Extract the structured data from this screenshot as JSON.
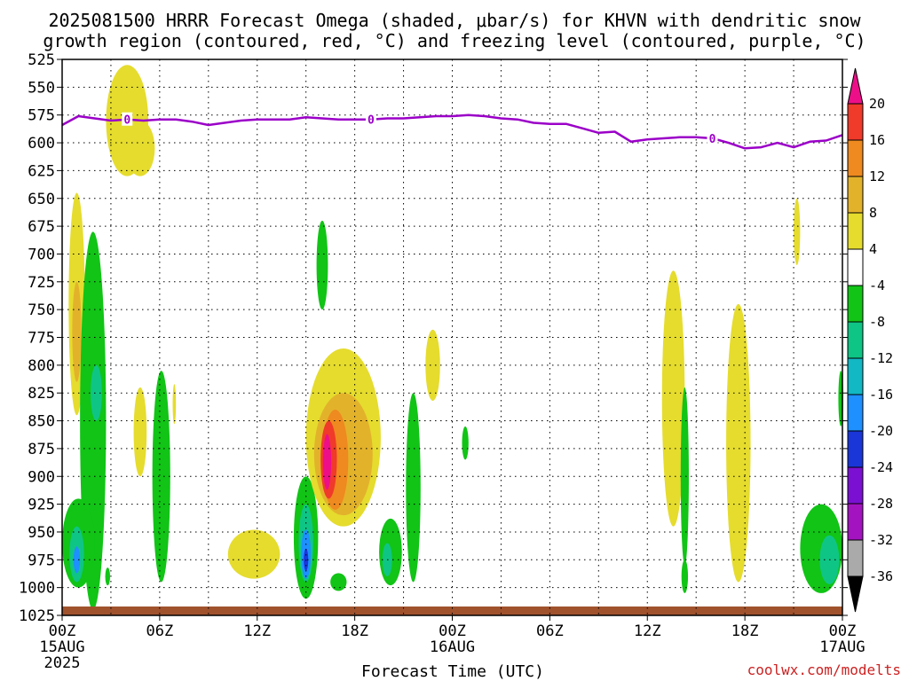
{
  "title": {
    "line1": "2025081500 HRRR Forecast Omega (shaded, μbar/s) for KHVN with dendritic snow",
    "line2": "growth region (contoured, red, °C) and freezing level (contoured, purple, °C)"
  },
  "credit": "coolwx.com/modelts",
  "chart_data": {
    "type": "heatmap",
    "title": "2025081500 HRRR Forecast Omega (shaded, μbar/s) for KHVN with dendritic snow growth region (contoured, red, °C) and freezing level (contoured, purple, °C)",
    "xlabel": "Forecast Time (UTC)",
    "ylabel": "",
    "x_unit": "hours since 2025-08-15 00Z",
    "xlim": [
      0,
      48
    ],
    "ylim": [
      1025,
      525
    ],
    "y_ticks": [
      525,
      550,
      575,
      600,
      625,
      650,
      675,
      700,
      725,
      750,
      775,
      800,
      825,
      850,
      875,
      900,
      925,
      950,
      975,
      1000,
      1025
    ],
    "x_ticks": [
      {
        "hour": 0,
        "label": "00Z",
        "sub1": "15AUG",
        "sub2": "2025"
      },
      {
        "hour": 6,
        "label": "06Z",
        "sub1": "",
        "sub2": ""
      },
      {
        "hour": 12,
        "label": "12Z",
        "sub1": "",
        "sub2": ""
      },
      {
        "hour": 18,
        "label": "18Z",
        "sub1": "",
        "sub2": ""
      },
      {
        "hour": 24,
        "label": "00Z",
        "sub1": "16AUG",
        "sub2": ""
      },
      {
        "hour": 30,
        "label": "06Z",
        "sub1": "",
        "sub2": ""
      },
      {
        "hour": 36,
        "label": "12Z",
        "sub1": "",
        "sub2": ""
      },
      {
        "hour": 42,
        "label": "18Z",
        "sub1": "",
        "sub2": ""
      },
      {
        "hour": 48,
        "label": "00Z",
        "sub1": "17AUG",
        "sub2": ""
      }
    ],
    "grid": true,
    "colorbar": {
      "label_values": [
        20,
        16,
        12,
        8,
        4,
        -4,
        -8,
        -12,
        -16,
        -20,
        -24,
        -28,
        -32,
        -36
      ],
      "bins": [
        {
          "color": "#ec0f88"
        },
        {
          "color": "#f03a2a"
        },
        {
          "color": "#ee8a1f"
        },
        {
          "color": "#e3b22b"
        },
        {
          "color": "#e5dc2e"
        },
        {
          "color": "#ffffff"
        },
        {
          "color": "#11c416"
        },
        {
          "color": "#0fc585"
        },
        {
          "color": "#12b8c4"
        },
        {
          "color": "#1e90ff"
        },
        {
          "color": "#1a36d8"
        },
        {
          "color": "#7b10d3"
        },
        {
          "color": "#a413c0"
        },
        {
          "color": "#aaaaaa"
        },
        {
          "color": "#000000"
        }
      ]
    },
    "freezing_level": {
      "label": "0",
      "color": "#9b00c8",
      "points": [
        [
          0,
          584
        ],
        [
          1,
          576
        ],
        [
          2,
          578
        ],
        [
          3,
          580
        ],
        [
          4,
          579
        ],
        [
          5,
          580
        ],
        [
          6,
          579
        ],
        [
          7,
          579
        ],
        [
          8,
          581
        ],
        [
          9,
          584
        ],
        [
          10,
          582
        ],
        [
          11,
          580
        ],
        [
          12,
          579
        ],
        [
          13,
          579
        ],
        [
          14,
          579
        ],
        [
          15,
          577
        ],
        [
          16,
          578
        ],
        [
          17,
          579
        ],
        [
          18,
          579
        ],
        [
          19,
          579
        ],
        [
          20,
          578
        ],
        [
          21,
          578
        ],
        [
          22,
          577
        ],
        [
          23,
          576
        ],
        [
          24,
          576
        ],
        [
          25,
          575
        ],
        [
          26,
          576
        ],
        [
          27,
          578
        ],
        [
          28,
          579
        ],
        [
          29,
          582
        ],
        [
          30,
          583
        ],
        [
          31,
          583
        ],
        [
          32,
          587
        ],
        [
          33,
          591
        ],
        [
          34,
          590
        ],
        [
          35,
          599
        ],
        [
          36,
          597
        ],
        [
          37,
          596
        ],
        [
          38,
          595
        ],
        [
          39,
          595
        ],
        [
          40,
          596
        ],
        [
          41,
          600
        ],
        [
          42,
          605
        ],
        [
          43,
          604
        ],
        [
          44,
          600
        ],
        [
          45,
          604
        ],
        [
          46,
          599
        ],
        [
          47,
          598
        ],
        [
          48,
          593
        ]
      ],
      "labels_at_hours": [
        4,
        19,
        40
      ]
    },
    "surface": {
      "color": "#a0522d",
      "top_pressure": 1017
    },
    "omega_regions": [
      {
        "name": "ascent-15aug-00z-yellow",
        "color": "#e5dc2e",
        "hour": 0.9,
        "p": 745,
        "dh": 0.5,
        "dp": 100
      },
      {
        "name": "ascent-15aug-00z-orange",
        "color": "#e3b22b",
        "hour": 0.9,
        "p": 770,
        "dh": 0.28,
        "dp": 45
      },
      {
        "name": "descent-15aug-01z-green",
        "color": "#11c416",
        "hour": 1.9,
        "p": 850,
        "dh": 0.8,
        "dp": 170
      },
      {
        "name": "descent-15aug-01z-teal",
        "color": "#0fc585",
        "hour": 2.1,
        "p": 825,
        "dh": 0.35,
        "dp": 25
      },
      {
        "name": "descent-15aug-00z-lowgreen",
        "color": "#11c416",
        "hour": 1.0,
        "p": 960,
        "dh": 1.0,
        "dp": 40
      },
      {
        "name": "descent-15aug-00z-lowteal",
        "color": "#0fc585",
        "hour": 0.9,
        "p": 970,
        "dh": 0.45,
        "dp": 25
      },
      {
        "name": "descent-15aug-00z-lowblue",
        "color": "#1e90ff",
        "hour": 0.9,
        "p": 975,
        "dh": 0.2,
        "dp": 12
      },
      {
        "name": "descent-15aug-03z-small",
        "color": "#11c416",
        "hour": 2.8,
        "p": 990,
        "dh": 0.15,
        "dp": 8
      },
      {
        "name": "ascent-15aug-04z-upper",
        "color": "#e5dc2e",
        "hour": 4.0,
        "p": 580,
        "dh": 1.3,
        "dp": 50
      },
      {
        "name": "ascent-15aug-04z-upper-diag",
        "color": "#e5dc2e",
        "hour": 4.8,
        "p": 605,
        "dh": 0.9,
        "dp": 25
      },
      {
        "name": "ascent-15aug-05z-mid",
        "color": "#e5dc2e",
        "hour": 4.8,
        "p": 860,
        "dh": 0.4,
        "dp": 40
      },
      {
        "name": "descent-15aug-06z-green",
        "color": "#11c416",
        "hour": 6.1,
        "p": 900,
        "dh": 0.55,
        "dp": 95
      },
      {
        "name": "ascent-15aug-07z-thin",
        "color": "#e5dc2e",
        "hour": 6.9,
        "p": 835,
        "dh": 0.1,
        "dp": 18
      },
      {
        "name": "ascent-15aug-12z-yellow",
        "color": "#e5dc2e",
        "hour": 11.8,
        "p": 970,
        "dh": 1.6,
        "dp": 22
      },
      {
        "name": "descent-15aug-15z-green",
        "color": "#11c416",
        "hour": 15.0,
        "p": 955,
        "dh": 0.75,
        "dp": 55
      },
      {
        "name": "descent-15aug-15z-teal",
        "color": "#0fc585",
        "hour": 15.0,
        "p": 960,
        "dh": 0.45,
        "dp": 35
      },
      {
        "name": "descent-15aug-15z-blue",
        "color": "#1e90ff",
        "hour": 15.0,
        "p": 970,
        "dh": 0.3,
        "dp": 22
      },
      {
        "name": "descent-15aug-15z-darkblue",
        "color": "#1a36d8",
        "hour": 15.0,
        "p": 975,
        "dh": 0.14,
        "dp": 10
      },
      {
        "name": "descent-15aug-16z-upper",
        "color": "#11c416",
        "hour": 16.0,
        "p": 710,
        "dh": 0.35,
        "dp": 40
      },
      {
        "name": "ascent-15aug-16z-yellow",
        "color": "#e5dc2e",
        "hour": 17.3,
        "p": 865,
        "dh": 2.3,
        "dp": 80
      },
      {
        "name": "ascent-15aug-16z-orange",
        "color": "#e3b22b",
        "hour": 17.3,
        "p": 880,
        "dh": 1.8,
        "dp": 55
      },
      {
        "name": "ascent-15aug-16z-darkorange",
        "color": "#ee8a1f",
        "hour": 16.8,
        "p": 885,
        "dh": 0.8,
        "dp": 45
      },
      {
        "name": "ascent-15aug-16z-red",
        "color": "#f03a2a",
        "hour": 16.4,
        "p": 885,
        "dh": 0.5,
        "dp": 35
      },
      {
        "name": "ascent-15aug-16z-magenta",
        "color": "#ec0f88",
        "hour": 16.3,
        "p": 887,
        "dh": 0.25,
        "dp": 25
      },
      {
        "name": "descent-15aug-17z-low",
        "color": "#11c416",
        "hour": 17.0,
        "p": 995,
        "dh": 0.5,
        "dp": 8
      },
      {
        "name": "descent-15aug-20z-green",
        "color": "#11c416",
        "hour": 20.2,
        "p": 968,
        "dh": 0.7,
        "dp": 30
      },
      {
        "name": "descent-15aug-20z-teal",
        "color": "#0fc585",
        "hour": 20.0,
        "p": 975,
        "dh": 0.3,
        "dp": 15
      },
      {
        "name": "descent-15aug-21z-green",
        "color": "#11c416",
        "hour": 21.6,
        "p": 910,
        "dh": 0.45,
        "dp": 85
      },
      {
        "name": "ascent-15aug-22z-yellow",
        "color": "#e5dc2e",
        "hour": 22.8,
        "p": 800,
        "dh": 0.45,
        "dp": 32
      },
      {
        "name": "descent-16aug-01z-small",
        "color": "#11c416",
        "hour": 24.8,
        "p": 870,
        "dh": 0.2,
        "dp": 15
      },
      {
        "name": "ascent-16aug-13z-yellow",
        "color": "#e5dc2e",
        "hour": 37.6,
        "p": 830,
        "dh": 0.7,
        "dp": 115
      },
      {
        "name": "descent-16aug-15z-green",
        "color": "#11c416",
        "hour": 38.3,
        "p": 900,
        "dh": 0.25,
        "dp": 80
      },
      {
        "name": "descent-16aug-15z-low",
        "color": "#11c416",
        "hour": 38.3,
        "p": 990,
        "dh": 0.2,
        "dp": 15
      },
      {
        "name": "ascent-16aug-18z-yellow",
        "color": "#e5dc2e",
        "hour": 41.6,
        "p": 870,
        "dh": 0.75,
        "dp": 125
      },
      {
        "name": "ascent-16aug-22z-upper",
        "color": "#e5dc2e",
        "hour": 45.2,
        "p": 680,
        "dh": 0.2,
        "dp": 30
      },
      {
        "name": "descent-16aug-23z-green",
        "color": "#11c416",
        "hour": 46.7,
        "p": 965,
        "dh": 1.3,
        "dp": 40
      },
      {
        "name": "descent-16aug-23z-teal",
        "color": "#0fc585",
        "hour": 47.2,
        "p": 975,
        "dh": 0.6,
        "dp": 22
      },
      {
        "name": "descent-17aug-00z-edge",
        "color": "#11c416",
        "hour": 47.9,
        "p": 830,
        "dh": 0.15,
        "dp": 25
      }
    ]
  }
}
